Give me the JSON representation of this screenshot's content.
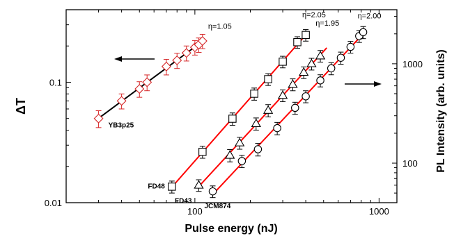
{
  "chart_data": {
    "type": "scatter",
    "xlabel": "Pulse energy (nJ)",
    "ylabel_left": "ΔT",
    "ylabel_right": "PL Intensity (arb. units)",
    "xscale": "log",
    "yscale_left": "log",
    "yscale_right": "log",
    "xlim": [
      20,
      1250
    ],
    "ylim_left": [
      0.01,
      0.4
    ],
    "ylim_right": [
      40,
      3500
    ],
    "x_ticks": [
      100,
      1000
    ],
    "x_tick_labels": [
      "100",
      "1000"
    ],
    "y_left_ticks": [
      0.01,
      0.1
    ],
    "y_left_tick_labels": [
      "0.01",
      "0.1"
    ],
    "y_right_ticks": [
      100,
      1000
    ],
    "y_right_tick_labels": [
      "100",
      "1000"
    ],
    "series": [
      {
        "name": "YB3p25",
        "axis": "left",
        "marker": "diamond",
        "color": "#d62728",
        "line_color": "#000000",
        "fit_x": [
          30,
          110
        ],
        "eta_label": "η=1.05",
        "x": [
          30,
          40,
          50,
          55,
          70,
          80,
          90,
          100,
          105,
          110
        ],
        "y": [
          0.05,
          0.07,
          0.088,
          0.1,
          0.135,
          0.152,
          0.175,
          0.195,
          0.205,
          0.22
        ],
        "err": [
          0.008,
          0.01,
          0.013,
          0.015,
          0.02,
          0.022,
          0.025,
          0.027,
          0.028,
          0.03
        ]
      },
      {
        "name": "FD48",
        "axis": "right",
        "marker": "square",
        "color": "#000000",
        "line_color": "#ff0000",
        "fit_x": [
          75,
          410
        ],
        "eta_label": "η=2.05",
        "x": [
          75,
          110,
          160,
          210,
          250,
          300,
          360,
          400
        ],
        "y": [
          58,
          130,
          280,
          500,
          700,
          1050,
          1650,
          1950
        ],
        "err": [
          8,
          18,
          40,
          70,
          95,
          140,
          220,
          260
        ]
      },
      {
        "name": "FD43",
        "axis": "right",
        "marker": "triangle",
        "color": "#000000",
        "line_color": "#ff0000",
        "fit_x": [
          105,
          520
        ],
        "eta_label": "η=1.95",
        "x": [
          105,
          155,
          175,
          215,
          250,
          300,
          340,
          390,
          430,
          480
        ],
        "y": [
          60,
          120,
          160,
          250,
          340,
          480,
          620,
          820,
          1000,
          1200
        ],
        "err": [
          8,
          17,
          22,
          35,
          48,
          65,
          85,
          110,
          135,
          160
        ]
      },
      {
        "name": "JCM874",
        "axis": "right",
        "marker": "circle",
        "color": "#000000",
        "line_color": "#ff0000",
        "fit_x": [
          125,
          820
        ],
        "eta_label": "η=2.00",
        "x": [
          125,
          180,
          220,
          280,
          350,
          400,
          480,
          550,
          620,
          700,
          780,
          820
        ],
        "y": [
          52,
          105,
          138,
          225,
          360,
          470,
          680,
          900,
          1150,
          1480,
          1900,
          2080
        ],
        "err": [
          7,
          15,
          20,
          32,
          50,
          65,
          95,
          125,
          160,
          200,
          260,
          290
        ]
      }
    ]
  }
}
